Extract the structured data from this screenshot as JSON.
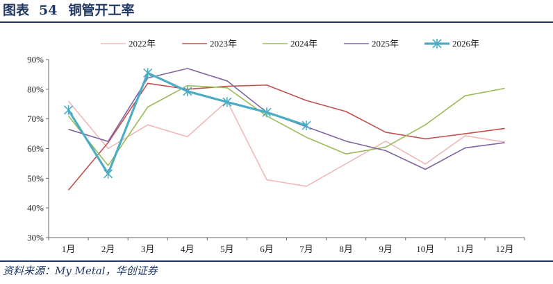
{
  "header": {
    "figure_label": "图表",
    "figure_number": "54",
    "title": "铜管开工率"
  },
  "footer": {
    "source": "资料来源：My Metal，华创证券"
  },
  "chart_data": {
    "type": "line",
    "categories": [
      "1月",
      "2月",
      "3月",
      "4月",
      "5月",
      "6月",
      "7月",
      "8月",
      "9月",
      "10月",
      "11月",
      "12月"
    ],
    "ylim": [
      30,
      90
    ],
    "yticks": [
      30,
      40,
      50,
      60,
      70,
      80,
      90
    ],
    "ytick_labels": [
      "30%",
      "40%",
      "50%",
      "60%",
      "70%",
      "80%",
      "90%"
    ],
    "grid": false,
    "legend_position": "top",
    "series": [
      {
        "name": "2022年",
        "color": "#efb8b8",
        "width": 1.6,
        "marker": "none",
        "values": [
          76,
          60,
          68,
          64,
          76,
          49.5,
          47.3,
          null,
          62.5,
          54.8,
          64.3,
          62.2
        ]
      },
      {
        "name": "2023年",
        "color": "#c0504d",
        "width": 1.6,
        "marker": "none",
        "values": [
          46,
          62,
          82,
          80,
          81,
          81.4,
          76.2,
          72.5,
          65.5,
          63.3,
          65,
          66.8
        ]
      },
      {
        "name": "2024年",
        "color": "#9bbb59",
        "width": 1.6,
        "marker": "none",
        "values": [
          71,
          54.3,
          74,
          81.2,
          80.5,
          71,
          63.8,
          58.2,
          60.5,
          68,
          77.8,
          80.3
        ]
      },
      {
        "name": "2025年",
        "color": "#8064a2",
        "width": 1.6,
        "marker": "none",
        "values": [
          66.5,
          62.4,
          83.8,
          87,
          82.8,
          72.2,
          null,
          62.5,
          59.3,
          53,
          60.2,
          62
        ]
      },
      {
        "name": "2026年",
        "color": "#4bacc6",
        "width": 3.2,
        "marker": "asterisk",
        "values": [
          73,
          51.5,
          85.5,
          79.3,
          75.7,
          72.2,
          67.8,
          null,
          null,
          null,
          null,
          null
        ]
      }
    ]
  }
}
